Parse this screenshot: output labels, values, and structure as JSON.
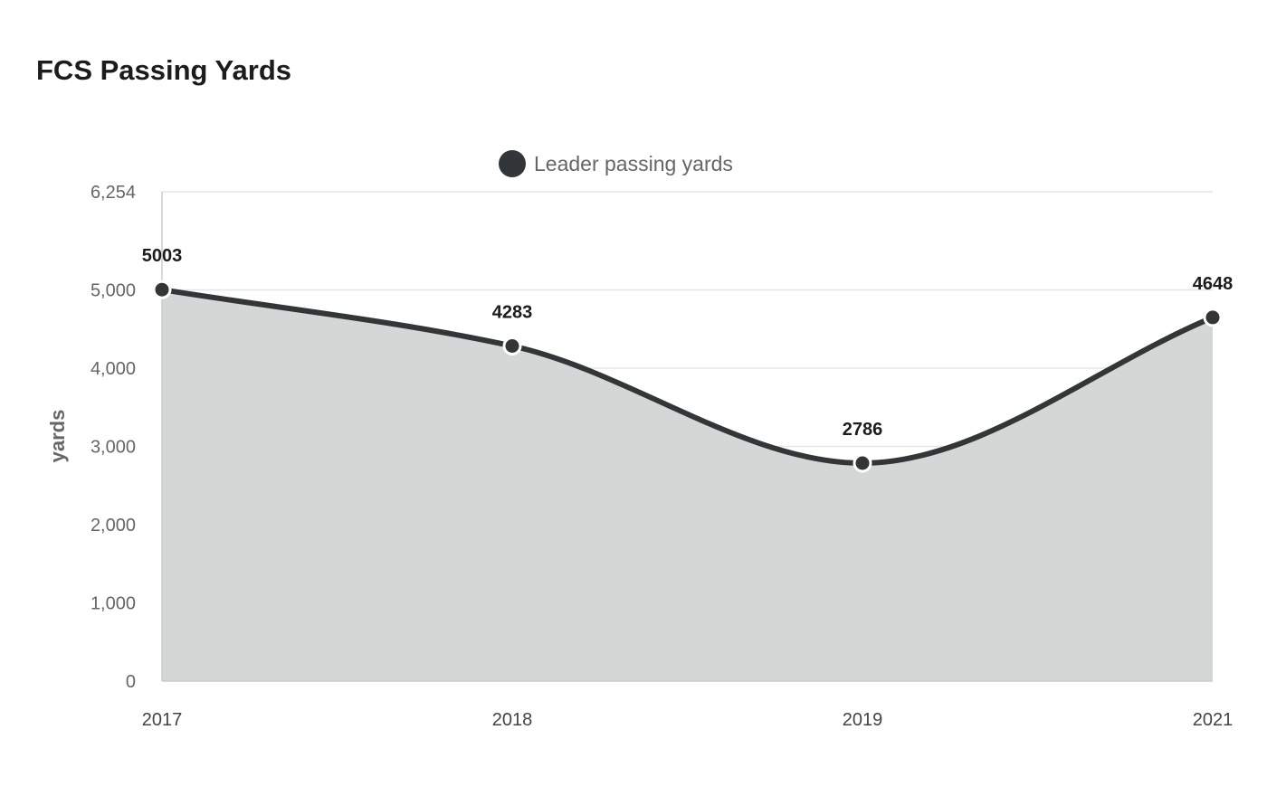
{
  "chart_data": {
    "type": "area",
    "title": "FCS Passing Yards",
    "categories": [
      "2017",
      "2018",
      "2019",
      "2021"
    ],
    "series": [
      {
        "name": "Leader passing yards",
        "values": [
          5003,
          4283,
          2786,
          4648
        ]
      }
    ],
    "xlabel": "",
    "ylabel": "yards",
    "ylim": [
      0,
      6254
    ],
    "yticks": [
      0,
      1000,
      2000,
      3000,
      4000,
      5000,
      6254
    ],
    "ytick_labels": [
      "0",
      "1,000",
      "2,000",
      "3,000",
      "4,000",
      "5,000",
      "6,254"
    ],
    "grid": true,
    "legend_position": "top-center",
    "colors": {
      "line": "#333638",
      "area": "#d5d6d6",
      "grid": "#e6e6e6"
    }
  }
}
